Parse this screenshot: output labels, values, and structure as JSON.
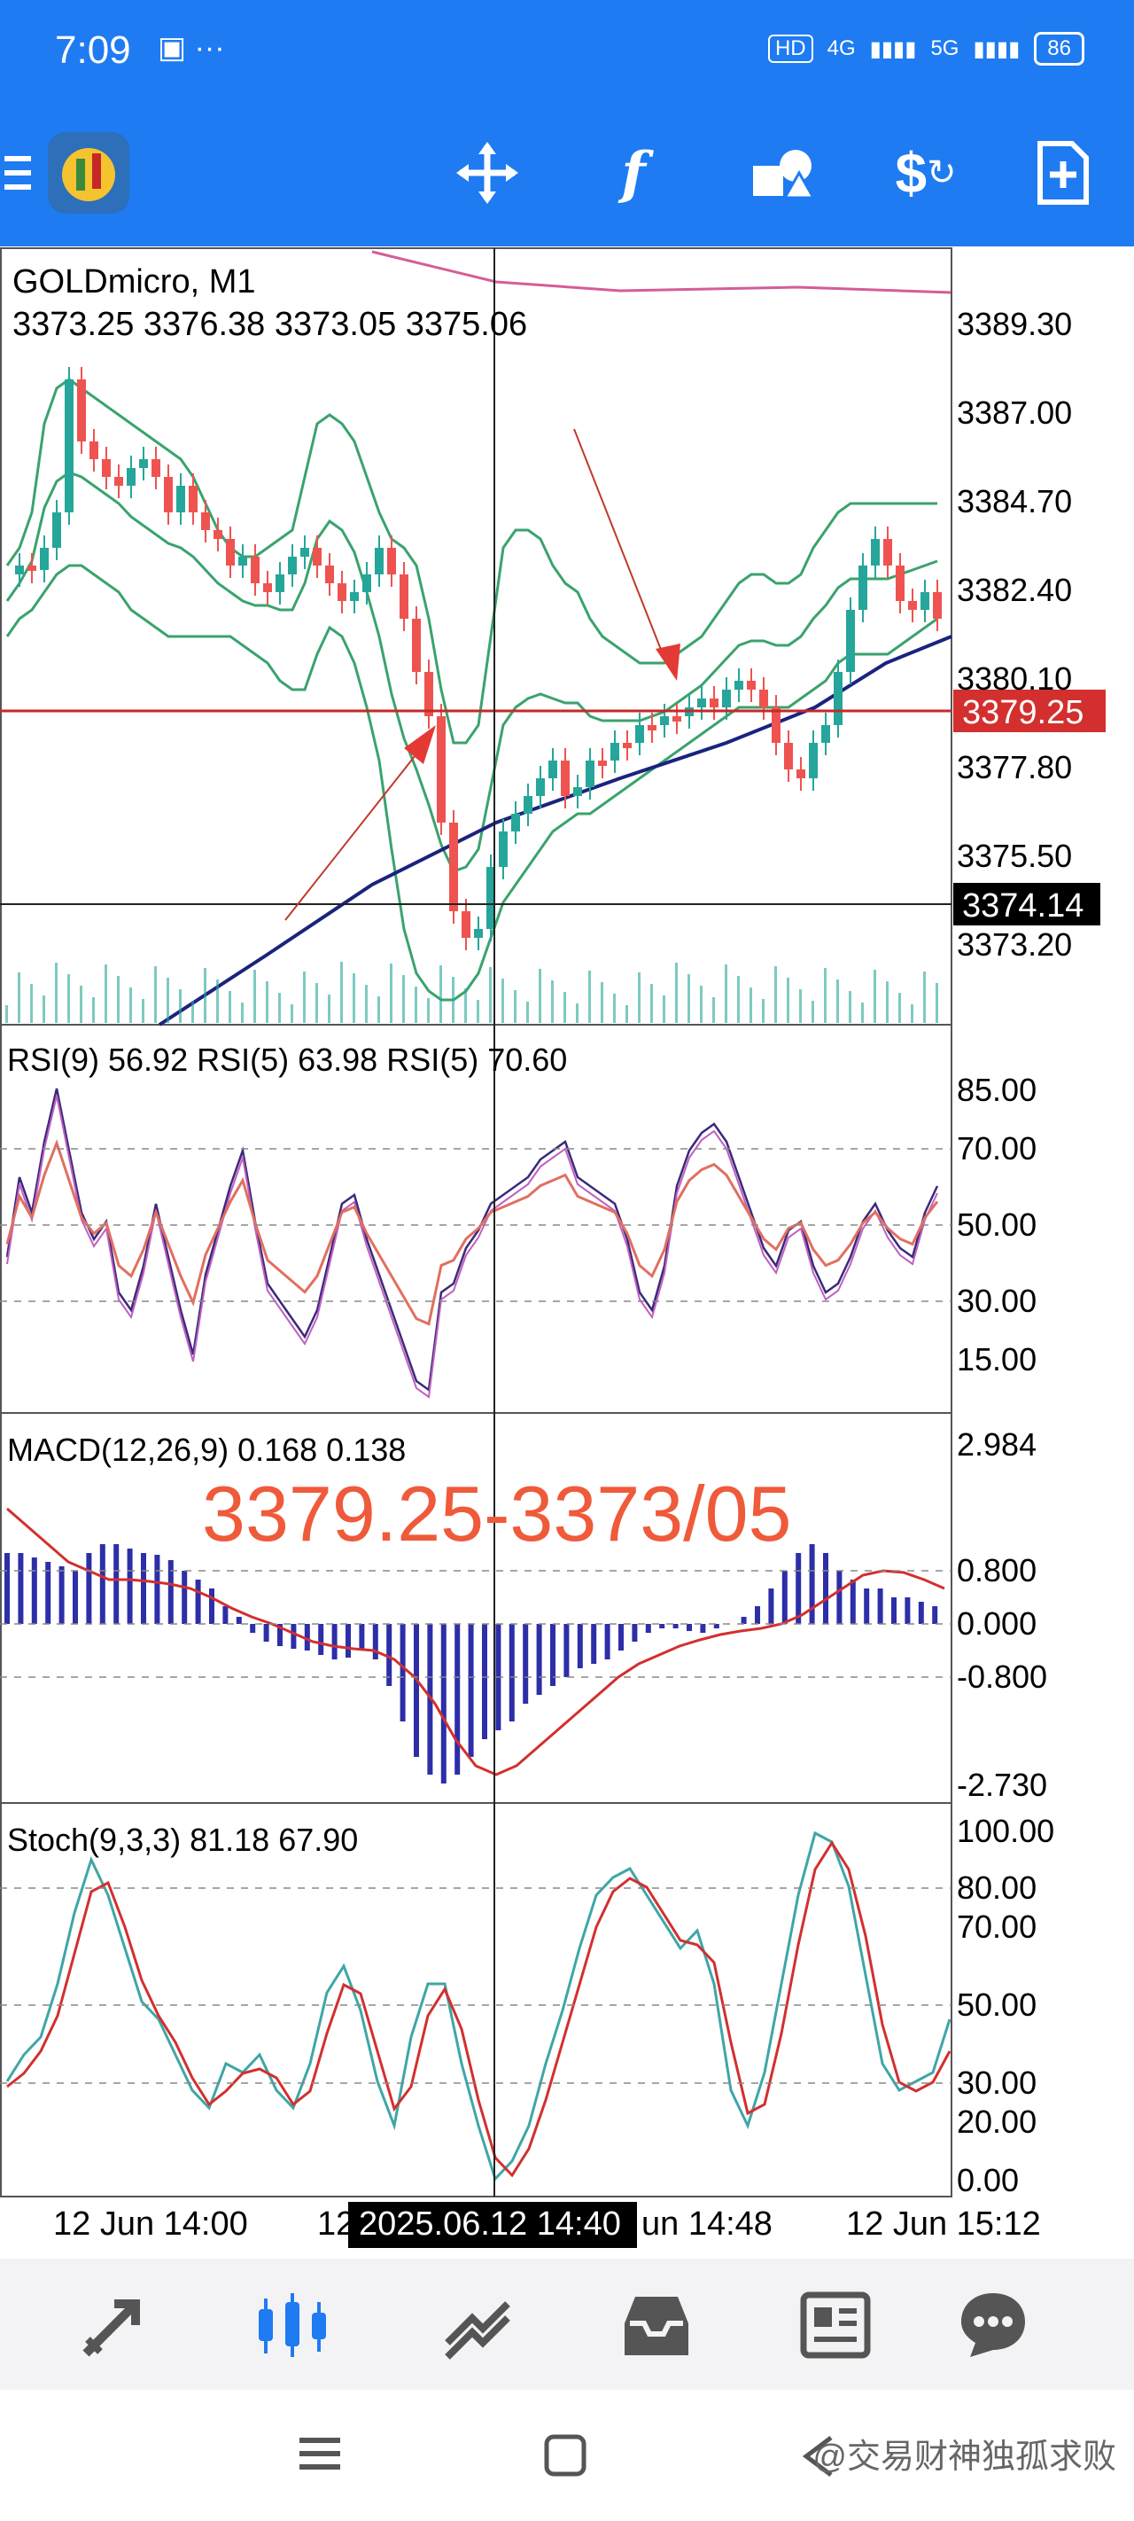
{
  "status": {
    "time": "7:09",
    "network_a": "4G",
    "network_b": "5G",
    "hd": "HD",
    "battery": "86"
  },
  "toolbar": {
    "items": [
      "menu-icon",
      "app-logo",
      "crosshair-icon",
      "function-icon",
      "objects-icon",
      "trade-icon",
      "new-order-icon"
    ]
  },
  "chart": {
    "symbol": "GOLDmicro, M1",
    "ohlc": "3373.25 3376.38 3373.05 3375.06",
    "price_labels": [
      "3389.30",
      "3387.00",
      "3384.70",
      "3382.40",
      "3380.10",
      "3377.80",
      "3375.50",
      "3373.20"
    ],
    "current_price": "3379.25",
    "crosshair_price": "3374.14",
    "annotation": "3379.25-3373/05",
    "colors": {
      "bull": "#26a69a",
      "bear": "#ef5350",
      "price_line": "#c62828",
      "ma": "#1a237e",
      "bands": "#3aa36d",
      "annotation": "#ef5a3a"
    }
  },
  "rsi": {
    "title": "RSI(9) 56.92 RSI(5) 63.98 RSI(5) 70.60",
    "levels": [
      "85.00",
      "70.00",
      "50.00",
      "30.00",
      "15.00"
    ]
  },
  "macd": {
    "title": "MACD(12,26,9) 0.168 0.138",
    "levels": [
      "2.984",
      "0.800",
      "0.000",
      "-0.800",
      "-2.730"
    ]
  },
  "stoch": {
    "title": "Stoch(9,3,3) 81.18 67.90",
    "levels": [
      "100.00",
      "80.00",
      "70.00",
      "50.00",
      "30.00",
      "20.00",
      "0.00"
    ]
  },
  "time_axis": {
    "labels": [
      "12 Jun 14:00",
      "12",
      "2025.06.12 14:40",
      "un 14:48",
      "12 Jun 15:12"
    ]
  },
  "bottom_nav": {
    "items": [
      "quotes-icon",
      "chart-icon",
      "trade-icon",
      "history-icon",
      "news-icon",
      "chat-icon"
    ]
  },
  "watermark": "@交易财神独孤求败"
}
